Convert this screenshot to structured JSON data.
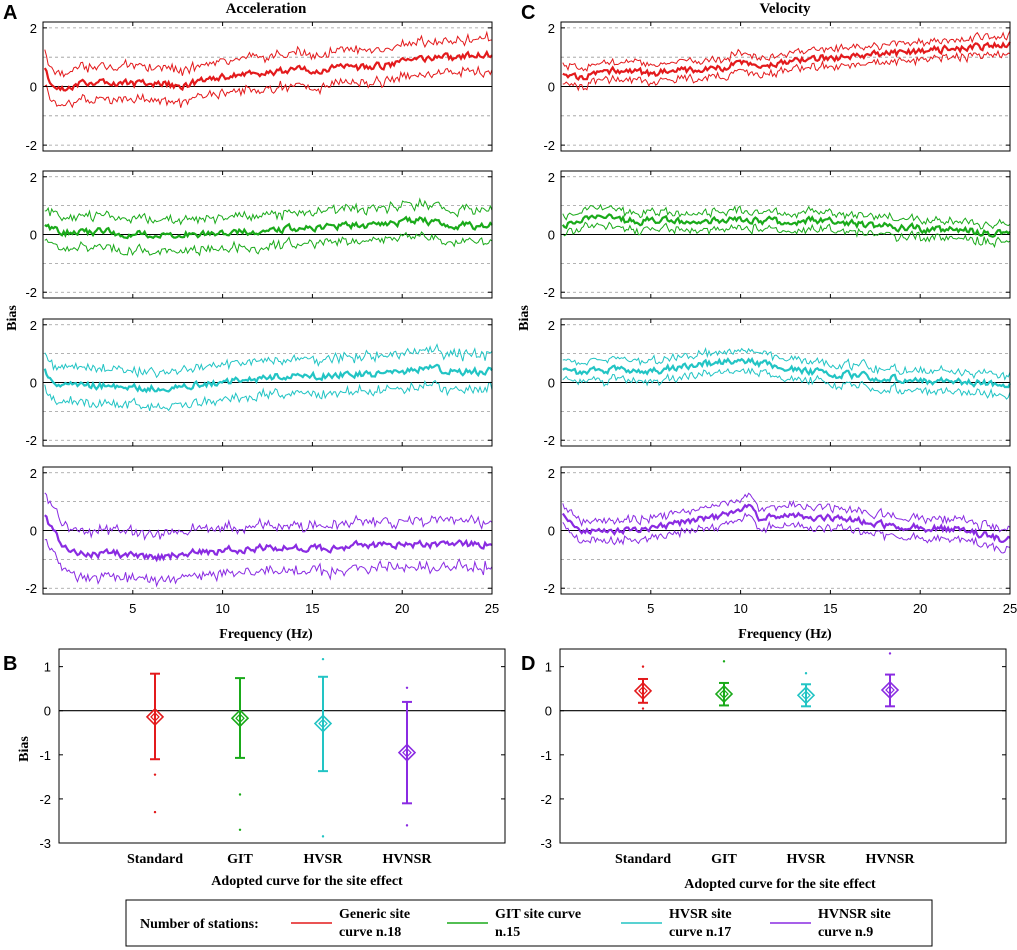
{
  "chart_data": [
    {
      "id": "A",
      "type": "line",
      "panel_label": "A",
      "title": "Acceleration",
      "xlabel": "Frequency (Hz)",
      "ylabel": "Bias",
      "xlim": [
        0,
        25
      ],
      "ylim": [
        -2.2,
        2.2
      ],
      "xticks": [
        5,
        10,
        15,
        20,
        25
      ],
      "yticks": [
        2,
        0,
        -2
      ],
      "subplots": [
        {
          "site": "Generic",
          "color": "#e31a1c",
          "knots_x": [
            0.1,
            0.5,
            1,
            3,
            5,
            8,
            10,
            12,
            15,
            18,
            21,
            23,
            25
          ],
          "mean": [
            0.6,
            -0.05,
            -0.05,
            0.2,
            0.1,
            0.05,
            0.35,
            0.45,
            0.6,
            0.65,
            0.9,
            1.0,
            1.1
          ],
          "spread": 0.55
        },
        {
          "site": "GIT",
          "color": "#1aaa1a",
          "knots_x": [
            0.1,
            1,
            3,
            5,
            8,
            10,
            13,
            16,
            19,
            21,
            23,
            25
          ],
          "mean": [
            0.3,
            0.05,
            0.1,
            0.0,
            0.0,
            0.1,
            0.15,
            0.3,
            0.35,
            0.5,
            0.3,
            0.3
          ],
          "spread": 0.55
        },
        {
          "site": "HVSR",
          "color": "#22c4c4",
          "knots_x": [
            0.1,
            0.5,
            1,
            3,
            6,
            8,
            10,
            13,
            16,
            19,
            21.5,
            23,
            25
          ],
          "mean": [
            0.45,
            -0.05,
            -0.15,
            -0.1,
            -0.2,
            -0.1,
            0.0,
            0.2,
            0.25,
            0.3,
            0.55,
            0.35,
            0.4
          ],
          "spread": 0.6
        },
        {
          "site": "HVNSR",
          "color": "#8a2be2",
          "knots_x": [
            0.1,
            1,
            2,
            4,
            6,
            8,
            10,
            12,
            15,
            18,
            20,
            23,
            25
          ],
          "mean": [
            0.5,
            -0.5,
            -0.85,
            -0.8,
            -0.95,
            -0.8,
            -0.7,
            -0.6,
            -0.65,
            -0.5,
            -0.45,
            -0.5,
            -0.45
          ],
          "spread": 0.8
        }
      ]
    },
    {
      "id": "C",
      "type": "line",
      "panel_label": "C",
      "title": "Velocity",
      "xlabel": "Frequency (Hz)",
      "ylabel": "Bias",
      "xlim": [
        0,
        25
      ],
      "ylim": [
        -2.2,
        2.2
      ],
      "xticks": [
        5,
        10,
        15,
        20,
        25
      ],
      "yticks": [
        2,
        0,
        -2
      ],
      "subplots": [
        {
          "site": "Generic",
          "color": "#e31a1c",
          "knots_x": [
            0.1,
            1,
            3,
            5,
            8,
            10,
            13,
            15,
            18,
            20,
            23,
            25
          ],
          "mean": [
            0.4,
            0.3,
            0.55,
            0.45,
            0.6,
            0.75,
            0.85,
            1.0,
            1.1,
            1.2,
            1.35,
            1.4
          ],
          "spread": 0.3
        },
        {
          "site": "GIT",
          "color": "#1aaa1a",
          "knots_x": [
            0.1,
            1,
            2,
            4,
            6,
            8,
            10,
            12,
            14,
            16,
            18,
            20,
            22,
            25
          ],
          "mean": [
            0.3,
            0.45,
            0.6,
            0.45,
            0.5,
            0.4,
            0.55,
            0.45,
            0.5,
            0.4,
            0.3,
            0.2,
            0.15,
            0.0
          ],
          "spread": 0.3
        },
        {
          "site": "HVSR",
          "color": "#22c4c4",
          "knots_x": [
            0.1,
            1,
            3,
            5,
            8,
            10,
            12,
            15,
            18,
            20,
            22,
            25
          ],
          "mean": [
            0.4,
            0.3,
            0.45,
            0.4,
            0.65,
            0.75,
            0.55,
            0.3,
            0.15,
            0.05,
            0.0,
            -0.05
          ],
          "spread": 0.35
        },
        {
          "site": "HVNSR",
          "color": "#8a2be2",
          "knots_x": [
            0.1,
            1,
            3,
            5,
            7,
            9,
            10.5,
            11,
            13,
            15,
            18,
            20,
            22,
            25
          ],
          "mean": [
            0.55,
            0.0,
            -0.05,
            0.1,
            0.3,
            0.5,
            0.8,
            0.45,
            0.5,
            0.45,
            0.2,
            0.1,
            0.05,
            -0.35
          ],
          "spread": 0.35
        }
      ]
    },
    {
      "id": "B",
      "type": "errorbar",
      "panel_label": "B",
      "xlabel": "Adopted curve for the site effect",
      "ylabel": "Bias",
      "ylim": [
        -3,
        1.4
      ],
      "yticks": [
        1,
        0,
        -1,
        -2,
        -3
      ],
      "categories": [
        "Standard",
        "GIT",
        "HVSR",
        "HVNSR"
      ],
      "series": [
        {
          "name": "Standard",
          "color": "#e31a1c",
          "mean": -0.14,
          "upper": 0.84,
          "lower": -1.1,
          "outliers": [
            -1.45,
            -2.3
          ]
        },
        {
          "name": "GIT",
          "color": "#1aaa1a",
          "mean": -0.17,
          "upper": 0.74,
          "lower": -1.07,
          "outliers": [
            -1.9,
            -2.7
          ]
        },
        {
          "name": "HVSR",
          "color": "#22c4c4",
          "mean": -0.29,
          "upper": 0.77,
          "lower": -1.37,
          "outliers": [
            1.17,
            -2.85
          ]
        },
        {
          "name": "HVNSR",
          "color": "#8a2be2",
          "mean": -0.95,
          "upper": 0.2,
          "lower": -2.1,
          "outliers": [
            0.52,
            -2.6
          ]
        }
      ]
    },
    {
      "id": "D",
      "type": "errorbar",
      "panel_label": "D",
      "xlabel": "Adopted curve for the site effect",
      "ylabel": "",
      "ylim": [
        -3,
        1.4
      ],
      "yticks": [
        1,
        0,
        -1,
        -2,
        -3
      ],
      "categories": [
        "Standard",
        "GIT",
        "HVSR",
        "HVNSR"
      ],
      "series": [
        {
          "name": "Standard",
          "color": "#e31a1c",
          "mean": 0.45,
          "upper": 0.72,
          "lower": 0.18,
          "outliers": [
            1.0,
            0.05
          ]
        },
        {
          "name": "GIT",
          "color": "#1aaa1a",
          "mean": 0.38,
          "upper": 0.63,
          "lower": 0.12,
          "outliers": [
            1.12
          ]
        },
        {
          "name": "HVSR",
          "color": "#22c4c4",
          "mean": 0.35,
          "upper": 0.6,
          "lower": 0.1,
          "outliers": [
            0.85
          ]
        },
        {
          "name": "HVNSR",
          "color": "#8a2be2",
          "mean": 0.47,
          "upper": 0.82,
          "lower": 0.1,
          "outliers": [
            1.3
          ]
        }
      ]
    }
  ],
  "legend": {
    "title": "Number of stations:",
    "entries": [
      {
        "color": "#e31a1c",
        "line1": "Generic site",
        "line2": "curve n.18"
      },
      {
        "color": "#1aaa1a",
        "line1": "GIT site curve",
        "line2": "n.15"
      },
      {
        "color": "#22c4c4",
        "line1": "HVSR site",
        "line2": "curve n.17"
      },
      {
        "color": "#8a2be2",
        "line1": "HVNSR site",
        "line2": "curve n.9"
      }
    ]
  }
}
